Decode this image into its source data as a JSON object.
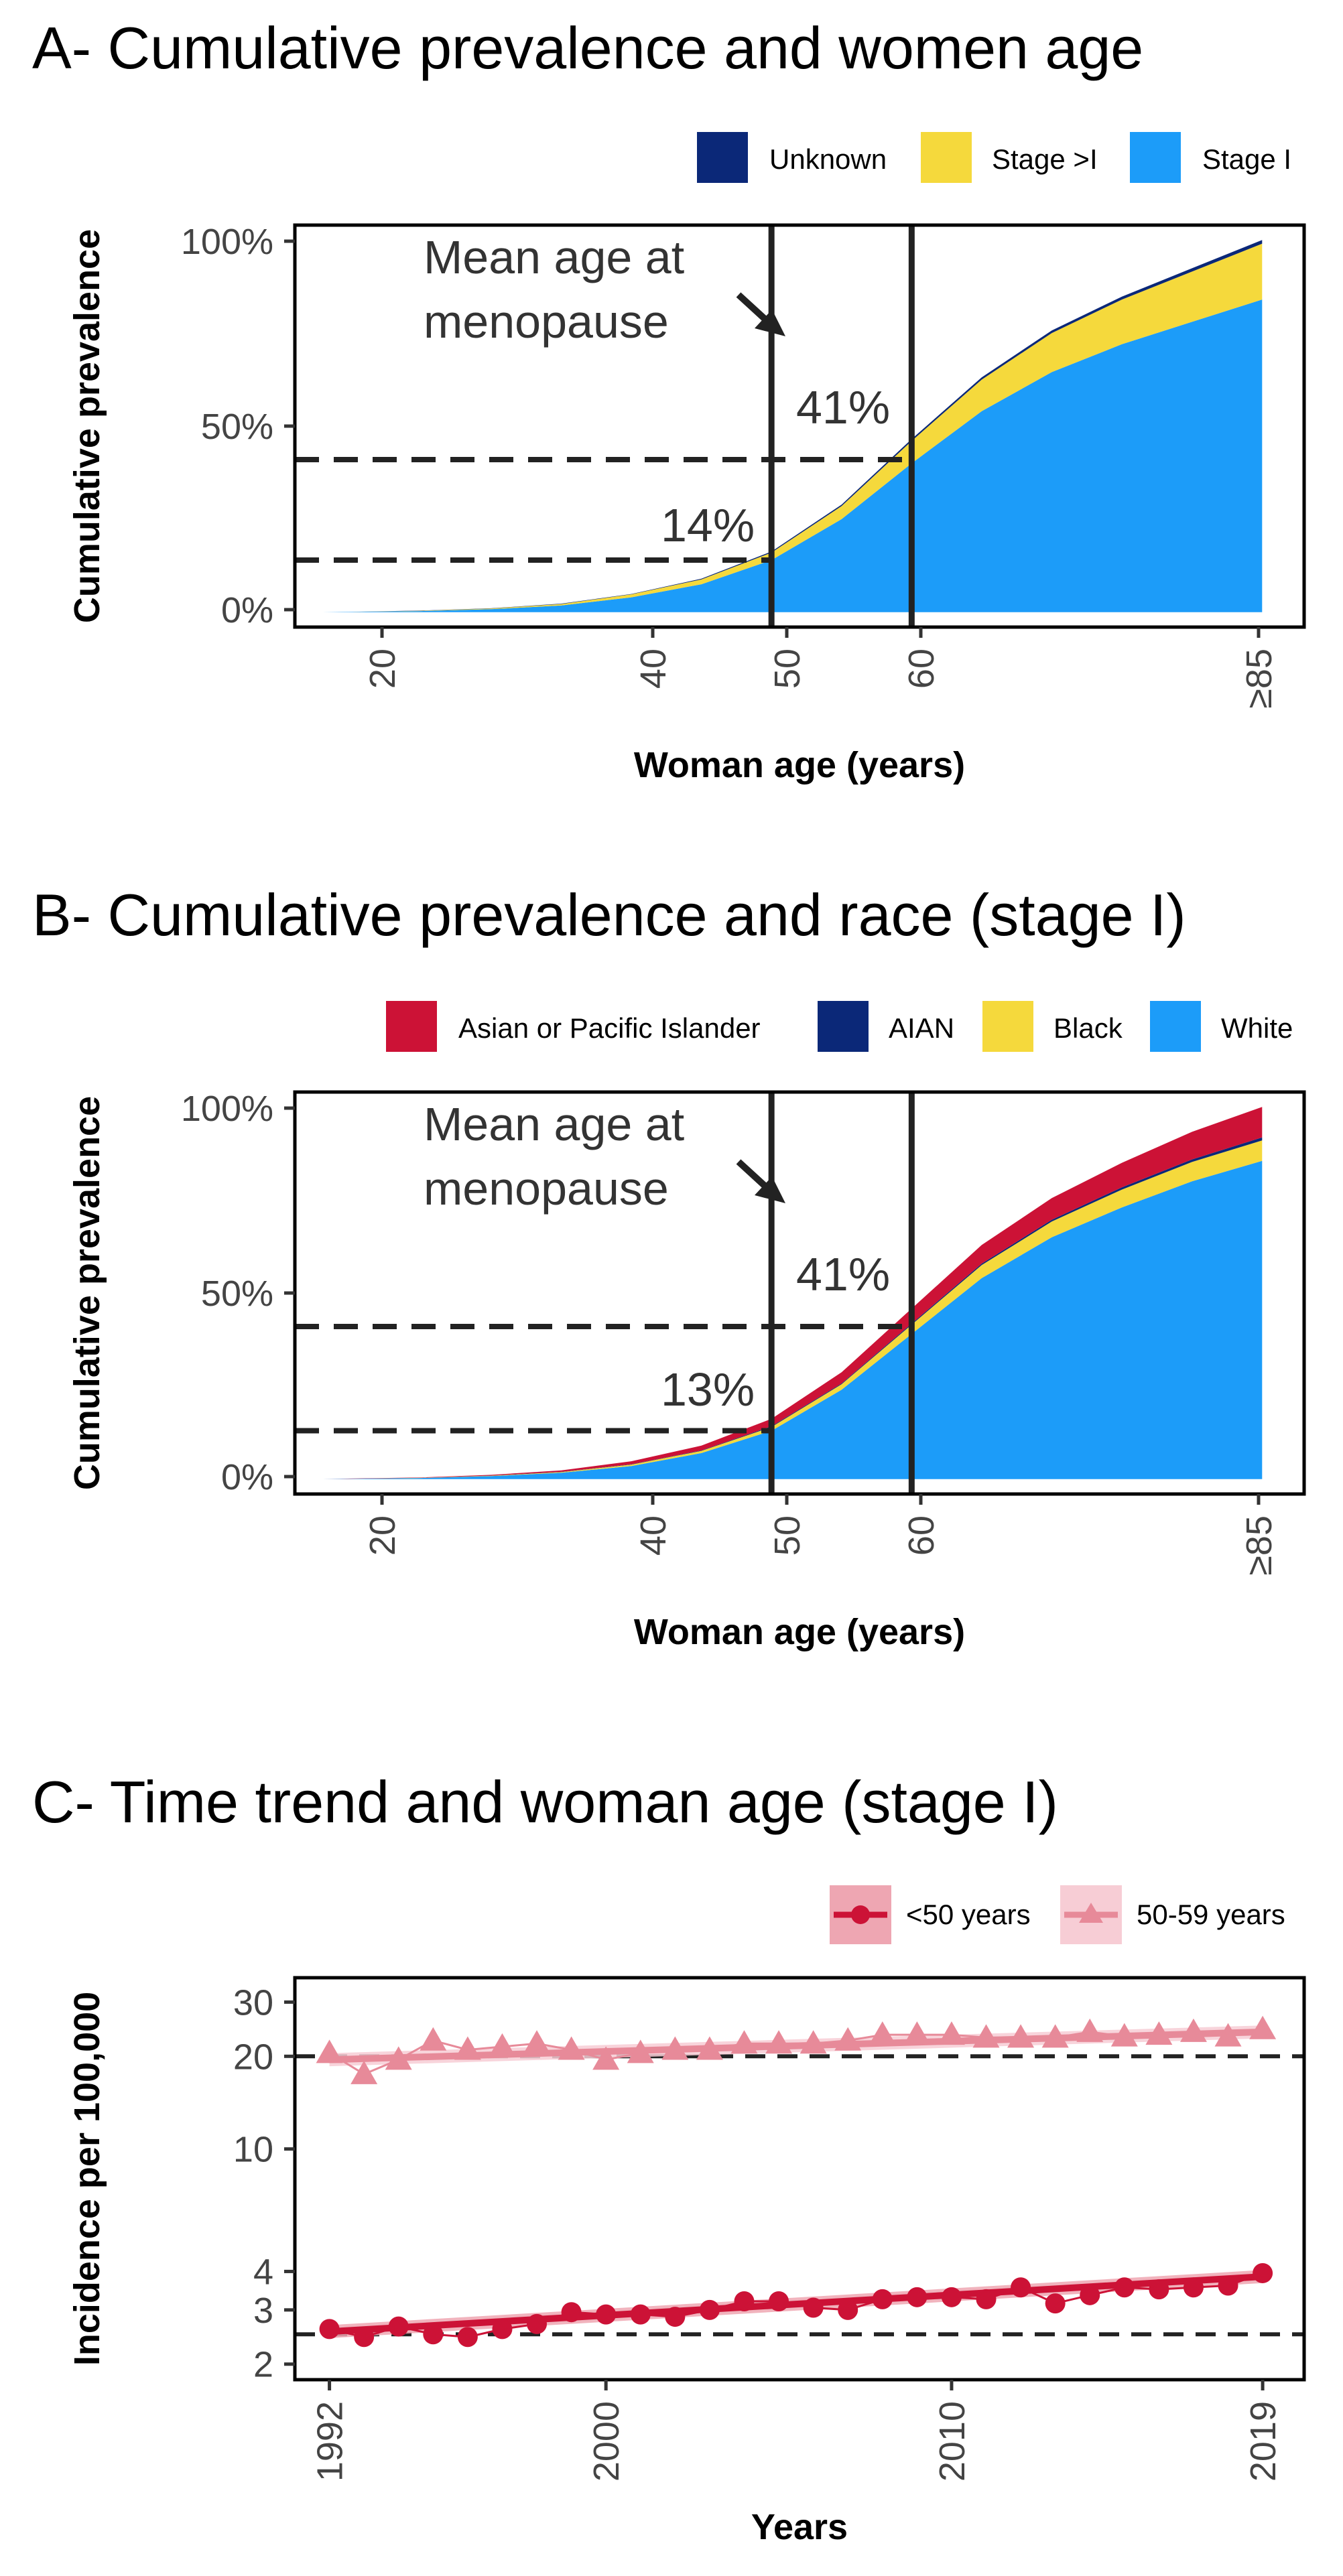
{
  "chart_data": [
    {
      "type": "area",
      "title": "A- Cumulative prevalence and women age",
      "xlabel": "Woman age (years)",
      "ylabel": "Cumulative prevalence",
      "xlim": [
        16,
        88
      ],
      "ylim": [
        -0.04,
        1.04
      ],
      "x_ticks": [
        {
          "value": 20,
          "label": "20"
        },
        {
          "value": 40,
          "label": "40"
        },
        {
          "value": 50,
          "label": "50"
        },
        {
          "value": 60,
          "label": "60"
        },
        {
          "value": 85,
          "label": "≥85"
        }
      ],
      "y_ticks": [
        {
          "value": 0,
          "label": "0%"
        },
        {
          "value": 0.5,
          "label": "50%"
        },
        {
          "value": 1,
          "label": "100%"
        }
      ],
      "x": [
        18,
        20,
        25,
        30,
        35,
        40,
        45,
        50,
        55,
        60,
        65,
        70,
        75,
        80,
        85
      ],
      "series": [
        {
          "name": "Stage I",
          "color": "#1c9cf9",
          "values": [
            0,
            0.001,
            0.003,
            0.008,
            0.018,
            0.04,
            0.075,
            0.14,
            0.25,
            0.4,
            0.54,
            0.645,
            0.72,
            0.78,
            0.84
          ]
        },
        {
          "name": "Stage >I",
          "color": "#f5d93c",
          "values": [
            0,
            0,
            0.001,
            0.002,
            0.004,
            0.008,
            0.013,
            0.02,
            0.035,
            0.06,
            0.085,
            0.105,
            0.12,
            0.135,
            0.15
          ]
        },
        {
          "name": "Unknown",
          "color": "#0b2878",
          "values": [
            0,
            0,
            0.0005,
            0.0005,
            0.001,
            0.001,
            0.002,
            0.003,
            0.004,
            0.005,
            0.006,
            0.007,
            0.008,
            0.009,
            0.01
          ]
        }
      ],
      "legend": {
        "position": "top-right",
        "order": [
          "Unknown",
          "Stage >I",
          "Stage I"
        ]
      },
      "vlines": [
        50,
        60
      ],
      "hlines": [
        {
          "value": 0.41,
          "label": "41%",
          "until_x": 60
        },
        {
          "value": 0.14,
          "label": "14%",
          "until_x": 50
        }
      ],
      "annotation": {
        "lines": [
          "Mean age at",
          "menopause"
        ]
      }
    },
    {
      "type": "area",
      "title": "B- Cumulative prevalence and race (stage I)",
      "xlabel": "Woman age (years)",
      "ylabel": "Cumulative prevalence",
      "xlim": [
        16,
        88
      ],
      "ylim": [
        -0.04,
        1.04
      ],
      "x_ticks": [
        {
          "value": 20,
          "label": "20"
        },
        {
          "value": 40,
          "label": "40"
        },
        {
          "value": 50,
          "label": "50"
        },
        {
          "value": 60,
          "label": "60"
        },
        {
          "value": 85,
          "label": "≥85"
        }
      ],
      "y_ticks": [
        {
          "value": 0,
          "label": "0%"
        },
        {
          "value": 0.5,
          "label": "50%"
        },
        {
          "value": 1,
          "label": "100%"
        }
      ],
      "x": [
        18,
        20,
        25,
        30,
        35,
        40,
        45,
        50,
        55,
        60,
        65,
        70,
        75,
        80,
        85
      ],
      "series": [
        {
          "name": "White",
          "color": "#1c9cf9",
          "values": [
            0,
            0.001,
            0.003,
            0.008,
            0.017,
            0.035,
            0.07,
            0.13,
            0.24,
            0.39,
            0.54,
            0.65,
            0.73,
            0.8,
            0.855
          ]
        },
        {
          "name": "Black",
          "color": "#f5d93c",
          "values": [
            0,
            0,
            0.0005,
            0.001,
            0.002,
            0.004,
            0.006,
            0.01,
            0.015,
            0.025,
            0.035,
            0.042,
            0.048,
            0.052,
            0.055
          ]
        },
        {
          "name": "AIAN",
          "color": "#0b2878",
          "values": [
            0,
            0,
            0,
            0.0005,
            0.0005,
            0.001,
            0.001,
            0.002,
            0.002,
            0.003,
            0.004,
            0.005,
            0.006,
            0.007,
            0.008
          ]
        },
        {
          "name": "Asian or Pacific Islander",
          "color": "#cc1236",
          "values": [
            0,
            0.0005,
            0.001,
            0.002,
            0.004,
            0.008,
            0.013,
            0.02,
            0.03,
            0.04,
            0.05,
            0.058,
            0.066,
            0.074,
            0.082
          ]
        }
      ],
      "legend": {
        "position": "top-right",
        "order": [
          "Asian or Pacific Islander",
          "AIAN",
          "Black",
          "White"
        ]
      },
      "vlines": [
        50,
        60
      ],
      "hlines": [
        {
          "value": 0.41,
          "label": "41%",
          "until_x": 60
        },
        {
          "value": 0.13,
          "label": "13%",
          "until_x": 50
        }
      ],
      "annotation": {
        "lines": [
          "Mean age at",
          "menopause"
        ]
      }
    },
    {
      "type": "line",
      "title": "C- Time trend and woman age (stage I)",
      "xlabel": "Years",
      "ylabel": "Incidence per 100,000",
      "y_scale": "log",
      "xlim": [
        1991,
        2020.2
      ],
      "ylim": [
        1.78,
        36
      ],
      "x_ticks": [
        {
          "value": 1992,
          "label": "1992"
        },
        {
          "value": 2000,
          "label": "2000"
        },
        {
          "value": 2010,
          "label": "2010"
        },
        {
          "value": 2019,
          "label": "2019"
        }
      ],
      "y_ticks": [
        {
          "value": 2,
          "label": "2"
        },
        {
          "value": 3,
          "label": "3"
        },
        {
          "value": 4,
          "label": "4"
        },
        {
          "value": 10,
          "label": "10"
        },
        {
          "value": 20,
          "label": "20"
        },
        {
          "value": 30,
          "label": "30"
        }
      ],
      "x": [
        1992,
        1993,
        1994,
        1995,
        1996,
        1997,
        1998,
        1999,
        2000,
        2001,
        2002,
        2003,
        2004,
        2005,
        2006,
        2007,
        2008,
        2009,
        2010,
        2011,
        2012,
        2013,
        2014,
        2015,
        2016,
        2017,
        2018,
        2019
      ],
      "series": [
        {
          "name": "<50 years",
          "color": "#cc1236",
          "marker": "circle",
          "values": [
            2.6,
            2.45,
            2.65,
            2.5,
            2.45,
            2.6,
            2.7,
            2.95,
            2.9,
            2.9,
            2.85,
            3.0,
            3.2,
            3.2,
            3.05,
            3.0,
            3.25,
            3.3,
            3.3,
            3.25,
            3.55,
            3.15,
            3.35,
            3.55,
            3.5,
            3.55,
            3.6,
            3.95
          ],
          "trend": [
            2.55,
            3.85
          ]
        },
        {
          "name": "50-59 years",
          "color": "#e78a99",
          "marker": "triangle",
          "values": [
            20.5,
            17.5,
            19.5,
            22.5,
            21,
            21.5,
            22,
            21,
            19.5,
            20.5,
            21,
            21,
            22,
            22,
            22,
            22.5,
            23.5,
            23.5,
            23.5,
            23,
            23,
            23,
            24,
            23.2,
            23.5,
            24,
            23.2,
            24.5
          ],
          "trend": [
            19.5,
            24
          ]
        }
      ],
      "legend": {
        "position": "top-right",
        "order": [
          "<50 years",
          "50-59 years"
        ]
      },
      "hlines": [
        {
          "value": 20,
          "label": "",
          "until_x": null
        },
        {
          "value": 2.5,
          "label": "",
          "until_x": null
        }
      ]
    }
  ]
}
